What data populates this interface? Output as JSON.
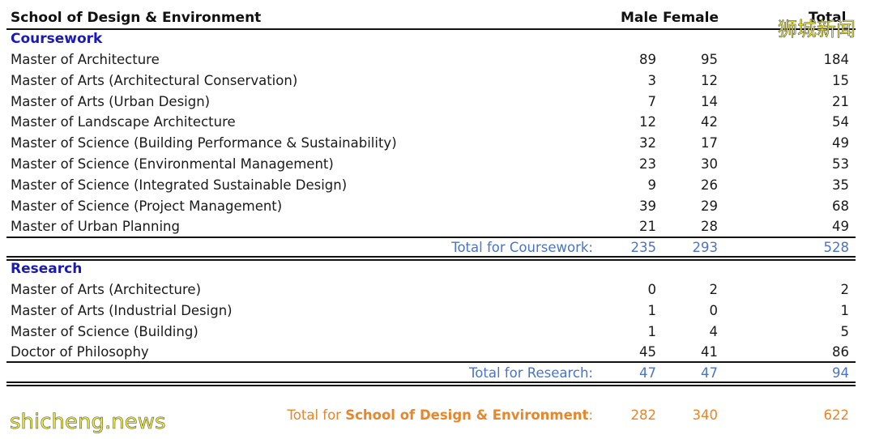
{
  "header": {
    "title": "School of Design & Environment",
    "col_male": "Male",
    "col_female": "Female",
    "col_total": "Total"
  },
  "coursework": {
    "heading": "Coursework",
    "rows": [
      {
        "name": "Master of Architecture",
        "male": "89",
        "female": "95",
        "total": "184"
      },
      {
        "name": "Master of Arts (Architectural Conservation)",
        "male": "3",
        "female": "12",
        "total": "15"
      },
      {
        "name": "Master of Arts (Urban Design)",
        "male": "7",
        "female": "14",
        "total": "21"
      },
      {
        "name": "Master of Landscape Architecture",
        "male": "12",
        "female": "42",
        "total": "54"
      },
      {
        "name": "Master of Science (Building Performance & Sustainability)",
        "male": "32",
        "female": "17",
        "total": "49"
      },
      {
        "name": "Master of Science (Environmental Management)",
        "male": "23",
        "female": "30",
        "total": "53"
      },
      {
        "name": "Master of Science (Integrated Sustainable Design)",
        "male": "9",
        "female": "26",
        "total": "35"
      },
      {
        "name": "Master of Science (Project Management)",
        "male": "39",
        "female": "29",
        "total": "68"
      },
      {
        "name": "Master of Urban Planning",
        "male": "21",
        "female": "28",
        "total": "49"
      }
    ],
    "total_label": "Total for Coursework:",
    "total_male": "235",
    "total_female": "293",
    "total_total": "528"
  },
  "research": {
    "heading": "Research",
    "rows": [
      {
        "name": "Master of Arts (Architecture)",
        "male": "0",
        "female": "2",
        "total": "2"
      },
      {
        "name": "Master of Arts (Industrial Design)",
        "male": "1",
        "female": "0",
        "total": "1"
      },
      {
        "name": "Master of Science (Building)",
        "male": "1",
        "female": "4",
        "total": "5"
      },
      {
        "name": "Doctor of Philosophy",
        "male": "45",
        "female": "41",
        "total": "86"
      }
    ],
    "total_label": "Total for Research:",
    "total_male": "47",
    "total_female": "47",
    "total_total": "94"
  },
  "grand_total": {
    "label_prefix": "Total for ",
    "label_school": "School of Design & Environment",
    "label_suffix": ":",
    "male": "282",
    "female": "340",
    "total": "622"
  },
  "watermarks": {
    "top_right": "狮城新闻",
    "bottom_left": "shicheng.news"
  }
}
